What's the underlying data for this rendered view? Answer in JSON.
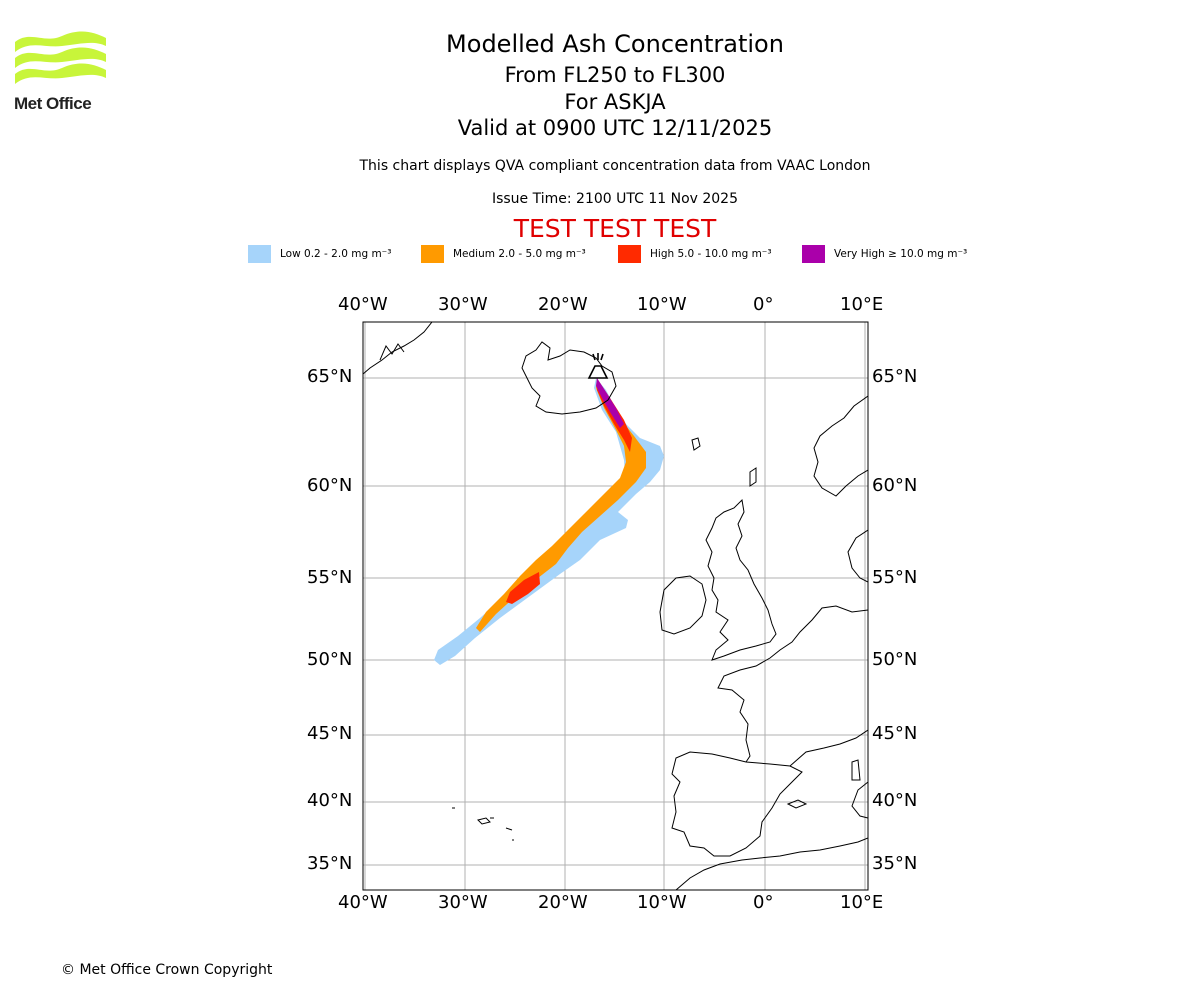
{
  "logo": {
    "text": "Met Office",
    "color": "#c8f53a"
  },
  "title": {
    "main": "Modelled Ash Concentration",
    "levels": "From FL250 to FL300",
    "volcano": "For ASKJA",
    "valid": "Valid at 0900 UTC 12/11/2025"
  },
  "note": "This chart displays QVA compliant concentration data from VAAC London",
  "issue_time": "Issue Time: 2100 UTC 11 Nov 2025",
  "test_banner": "TEST TEST TEST",
  "legend": [
    {
      "label": "Low 0.2 - 2.0 mg m⁻³",
      "color": "#a6d4fa"
    },
    {
      "label": "Medium 2.0 - 5.0 mg m⁻³",
      "color": "#ff9a00"
    },
    {
      "label": "High 5.0 - 10.0 mg m⁻³",
      "color": "#ff2a00"
    },
    {
      "label": "Very High ≥ 10.0 mg m⁻³",
      "color": "#aa00aa"
    }
  ],
  "map": {
    "lon_labels": [
      "40°W",
      "30°W",
      "20°W",
      "10°W",
      "0°",
      "10°E"
    ],
    "lat_labels": [
      "65°N",
      "60°N",
      "55°N",
      "50°N",
      "45°N",
      "40°N",
      "35°N"
    ],
    "volcano_icon": "volcano-icon"
  },
  "copyright": "© Met Office Crown Copyright"
}
